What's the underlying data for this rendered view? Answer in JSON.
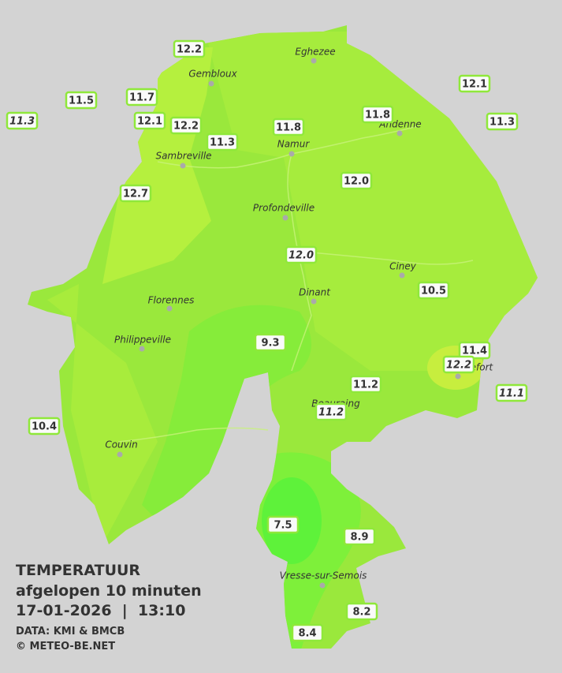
{
  "legend": {
    "title": "TEMPERATUUR",
    "subtitle": "afgelopen 10 minuten",
    "timestamp": "17-01-2026  |  13:10",
    "source": "DATA: KMI & BMCB",
    "copyright": "© METEO-BE.NET"
  },
  "cities": [
    "Eghezee",
    "Gembloux",
    "Andenne",
    "Namur",
    "Sambreville",
    "Profondeville",
    "Ciney",
    "Florennes",
    "Dinant",
    "Philippeville",
    "Beauraing",
    "Rochefort",
    "Couvin",
    "Vresse-sur-Semois"
  ],
  "stations": [
    {
      "value": "12.2"
    },
    {
      "value": "11.5"
    },
    {
      "value": "11.7"
    },
    {
      "value": "11.3",
      "italic": true
    },
    {
      "value": "12.1"
    },
    {
      "value": "12.2"
    },
    {
      "value": "11.3"
    },
    {
      "value": "11.8"
    },
    {
      "value": "11.8"
    },
    {
      "value": "12.1"
    },
    {
      "value": "11.3"
    },
    {
      "value": "12.7"
    },
    {
      "value": "12.0"
    },
    {
      "value": "12.0",
      "italic": true
    },
    {
      "value": "10.5"
    },
    {
      "value": "9.3"
    },
    {
      "value": "11.4"
    },
    {
      "value": "12.2",
      "italic": true
    },
    {
      "value": "11.2"
    },
    {
      "value": "11.2",
      "italic": true
    },
    {
      "value": "11.1",
      "italic": true
    },
    {
      "value": "10.4"
    },
    {
      "value": "7.5"
    },
    {
      "value": "8.9"
    },
    {
      "value": "8.2"
    },
    {
      "value": "8.4"
    }
  ]
}
